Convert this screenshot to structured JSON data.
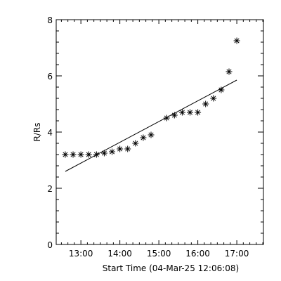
{
  "chart_data": {
    "type": "scatter",
    "xlabel": "Start Time (04-Mar-25 12:06:08)",
    "ylabel": "R/Rs",
    "xlim": [
      "12:22",
      "17:41"
    ],
    "ylim": [
      0,
      8
    ],
    "x_ticks": [
      "13:00",
      "14:00",
      "15:00",
      "16:00",
      "17:00"
    ],
    "y_ticks": [
      "0",
      "2",
      "4",
      "6",
      "8"
    ],
    "grid": false,
    "marker": "asterisk",
    "series": [
      {
        "x": [
          "12:36",
          "12:48",
          "13:00",
          "13:12",
          "13:24",
          "13:36",
          "13:48",
          "14:00",
          "14:12",
          "14:24",
          "14:36",
          "14:48",
          "15:12",
          "15:24",
          "15:36",
          "15:48",
          "16:00",
          "16:12",
          "16:24",
          "16:36",
          "16:48",
          "17:00"
        ],
        "values": [
          3.2,
          3.2,
          3.2,
          3.2,
          3.2,
          3.25,
          3.3,
          3.4,
          3.4,
          3.6,
          3.8,
          3.9,
          4.5,
          4.6,
          4.7,
          4.7,
          4.7,
          5.0,
          5.2,
          5.5,
          6.15,
          7.25
        ]
      }
    ],
    "fit_line": {
      "x": [
        "12:36",
        "17:00"
      ],
      "values": [
        2.6,
        5.85
      ]
    },
    "colors": {
      "ink": "#000000",
      "background": "#ffffff"
    }
  }
}
